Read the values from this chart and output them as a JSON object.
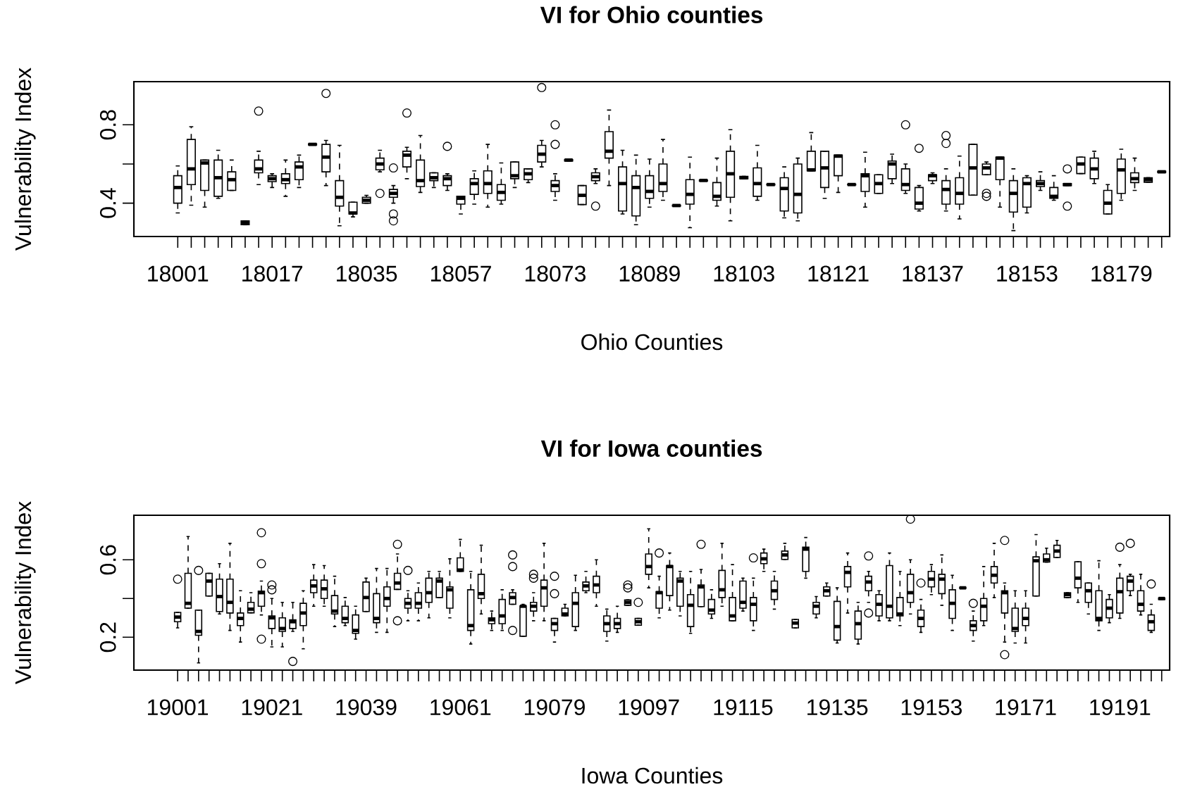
{
  "chart_data": [
    {
      "type": "box",
      "title": "VI for Ohio counties",
      "xlabel": "Ohio Counties",
      "ylabel": "Vulnerability Index",
      "categories": [
        "18001",
        null,
        null,
        null,
        null,
        null,
        null,
        "18017",
        null,
        null,
        null,
        null,
        null,
        null,
        "18035",
        null,
        null,
        null,
        null,
        null,
        null,
        "18057",
        null,
        null,
        null,
        null,
        null,
        null,
        "18073",
        null,
        null,
        null,
        null,
        null,
        null,
        "18089",
        null,
        null,
        null,
        null,
        null,
        null,
        "18103",
        null,
        null,
        null,
        null,
        null,
        null,
        "18121",
        null,
        null,
        null,
        null,
        null,
        null,
        "18137",
        null,
        null,
        null,
        null,
        null,
        null,
        "18153",
        null,
        null,
        null,
        null,
        null,
        null,
        "18179",
        null,
        null,
        null
      ],
      "ylim": [
        0.23,
        1.02
      ],
      "yticks": [
        0.4,
        {
          "value": 0.6,
          "label": null
        },
        0.8
      ],
      "boxes": [
        {
          "low": 0.35,
          "q1": 0.4,
          "median": 0.48,
          "q3": 0.54,
          "high": 0.59
        },
        {
          "low": 0.39,
          "q1": 0.495,
          "median": 0.575,
          "q3": 0.725,
          "high": 0.79
        },
        {
          "low": 0.38,
          "q1": 0.465,
          "median": 0.605,
          "q3": 0.62,
          "high": 0.62
        },
        {
          "low": 0.425,
          "q1": 0.435,
          "median": 0.53,
          "q3": 0.62,
          "high": 0.67
        },
        {
          "low": 0.465,
          "q1": 0.465,
          "median": 0.52,
          "q3": 0.56,
          "high": 0.62
        },
        {
          "low": 0.29,
          "q1": 0.29,
          "median": 0.3,
          "q3": 0.31,
          "high": 0.31
        },
        {
          "low": 0.495,
          "q1": 0.555,
          "median": 0.575,
          "q3": 0.62,
          "high": 0.665,
          "outliers": [
            0.87
          ]
        },
        {
          "low": 0.48,
          "q1": 0.51,
          "median": 0.525,
          "q3": 0.54,
          "high": 0.55
        },
        {
          "low": 0.435,
          "q1": 0.5,
          "median": 0.52,
          "q3": 0.55,
          "high": 0.62
        },
        {
          "low": 0.48,
          "q1": 0.52,
          "median": 0.585,
          "q3": 0.61,
          "high": 0.645
        },
        {
          "low": 0.697,
          "q1": 0.697,
          "median": 0.7,
          "q3": 0.703,
          "high": 0.703
        },
        {
          "low": 0.49,
          "q1": 0.56,
          "median": 0.635,
          "q3": 0.7,
          "high": 0.72,
          "outliers": [
            0.96
          ]
        },
        {
          "low": 0.285,
          "q1": 0.385,
          "median": 0.43,
          "q3": 0.515,
          "high": 0.695
        },
        {
          "low": 0.33,
          "q1": 0.345,
          "median": 0.35,
          "q3": 0.405,
          "high": 0.405
        },
        {
          "low": 0.4,
          "q1": 0.4,
          "median": 0.415,
          "q3": 0.43,
          "high": 0.44
        },
        {
          "low": 0.56,
          "q1": 0.57,
          "median": 0.6,
          "q3": 0.63,
          "high": 0.67,
          "outliers": [
            0.45
          ]
        },
        {
          "low": 0.4,
          "q1": 0.43,
          "median": 0.45,
          "q3": 0.47,
          "high": 0.49,
          "outliers": [
            0.31,
            0.345,
            0.58
          ]
        },
        {
          "low": 0.525,
          "q1": 0.585,
          "median": 0.645,
          "q3": 0.665,
          "high": 0.685,
          "outliers": [
            0.86
          ]
        },
        {
          "low": 0.455,
          "q1": 0.485,
          "median": 0.515,
          "q3": 0.62,
          "high": 0.745
        },
        {
          "low": 0.48,
          "q1": 0.515,
          "median": 0.53,
          "q3": 0.555,
          "high": 0.555
        },
        {
          "low": 0.465,
          "q1": 0.49,
          "median": 0.525,
          "q3": 0.54,
          "high": 0.55,
          "outliers": [
            0.69
          ]
        },
        {
          "low": 0.345,
          "q1": 0.395,
          "median": 0.425,
          "q3": 0.435,
          "high": 0.435
        },
        {
          "low": 0.395,
          "q1": 0.445,
          "median": 0.5,
          "q3": 0.525,
          "high": 0.565
        },
        {
          "low": 0.38,
          "q1": 0.45,
          "median": 0.5,
          "q3": 0.565,
          "high": 0.7
        },
        {
          "low": 0.395,
          "q1": 0.415,
          "median": 0.455,
          "q3": 0.495,
          "high": 0.605
        },
        {
          "low": 0.48,
          "q1": 0.525,
          "median": 0.54,
          "q3": 0.61,
          "high": 0.61
        },
        {
          "low": 0.505,
          "q1": 0.52,
          "median": 0.55,
          "q3": 0.575,
          "high": 0.575
        },
        {
          "low": 0.585,
          "q1": 0.61,
          "median": 0.65,
          "q3": 0.695,
          "high": 0.72,
          "outliers": [
            0.99
          ]
        },
        {
          "low": 0.415,
          "q1": 0.46,
          "median": 0.49,
          "q3": 0.515,
          "high": 0.55,
          "outliers": [
            0.7,
            0.8
          ]
        },
        {
          "low": 0.615,
          "q1": 0.615,
          "median": 0.62,
          "q3": 0.622,
          "high": 0.622
        },
        {
          "low": 0.393,
          "q1": 0.393,
          "median": 0.44,
          "q3": 0.49,
          "high": 0.49
        },
        {
          "low": 0.5,
          "q1": 0.515,
          "median": 0.535,
          "q3": 0.555,
          "high": 0.575,
          "outliers": [
            0.385
          ]
        },
        {
          "low": 0.49,
          "q1": 0.63,
          "median": 0.665,
          "q3": 0.765,
          "high": 0.875
        },
        {
          "low": 0.345,
          "q1": 0.36,
          "median": 0.5,
          "q3": 0.585,
          "high": 0.67
        },
        {
          "low": 0.29,
          "q1": 0.335,
          "median": 0.48,
          "q3": 0.54,
          "high": 0.645
        },
        {
          "low": 0.38,
          "q1": 0.425,
          "median": 0.46,
          "q3": 0.54,
          "high": 0.625
        },
        {
          "low": 0.415,
          "q1": 0.46,
          "median": 0.5,
          "q3": 0.6,
          "high": 0.725
        },
        {
          "low": 0.385,
          "q1": 0.385,
          "median": 0.388,
          "q3": 0.39,
          "high": 0.39
        },
        {
          "low": 0.275,
          "q1": 0.395,
          "median": 0.445,
          "q3": 0.52,
          "high": 0.635
        },
        {
          "low": 0.513,
          "q1": 0.513,
          "median": 0.516,
          "q3": 0.518,
          "high": 0.518
        },
        {
          "low": 0.385,
          "q1": 0.415,
          "median": 0.435,
          "q3": 0.505,
          "high": 0.63
        },
        {
          "low": 0.31,
          "q1": 0.43,
          "median": 0.55,
          "q3": 0.665,
          "high": 0.775
        },
        {
          "low": 0.525,
          "q1": 0.525,
          "median": 0.53,
          "q3": 0.537,
          "high": 0.537
        },
        {
          "low": 0.415,
          "q1": 0.435,
          "median": 0.5,
          "q3": 0.58,
          "high": 0.695
        },
        {
          "low": 0.493,
          "q1": 0.493,
          "median": 0.495,
          "q3": 0.497,
          "high": 0.497
        },
        {
          "low": 0.325,
          "q1": 0.36,
          "median": 0.475,
          "q3": 0.53,
          "high": 0.585
        },
        {
          "low": 0.31,
          "q1": 0.35,
          "median": 0.445,
          "q3": 0.6,
          "high": 0.63
        },
        {
          "low": 0.565,
          "q1": 0.565,
          "median": 0.57,
          "q3": 0.665,
          "high": 0.76
        },
        {
          "low": 0.425,
          "q1": 0.48,
          "median": 0.58,
          "q3": 0.665,
          "high": 0.665
        },
        {
          "low": 0.455,
          "q1": 0.54,
          "median": 0.64,
          "q3": 0.645,
          "high": 0.645
        },
        {
          "low": 0.493,
          "q1": 0.493,
          "median": 0.495,
          "q3": 0.497,
          "high": 0.497
        },
        {
          "low": 0.38,
          "q1": 0.46,
          "median": 0.54,
          "q3": 0.55,
          "high": 0.66
        },
        {
          "low": 0.45,
          "q1": 0.45,
          "median": 0.5,
          "q3": 0.545,
          "high": 0.545
        },
        {
          "low": 0.5,
          "q1": 0.525,
          "median": 0.6,
          "q3": 0.615,
          "high": 0.65
        },
        {
          "low": 0.45,
          "q1": 0.465,
          "median": 0.495,
          "q3": 0.575,
          "high": 0.6,
          "outliers": [
            0.8
          ]
        },
        {
          "low": 0.36,
          "q1": 0.37,
          "median": 0.4,
          "q3": 0.48,
          "high": 0.49,
          "outliers": [
            0.68
          ]
        },
        {
          "low": 0.5,
          "q1": 0.515,
          "median": 0.54,
          "q3": 0.545,
          "high": 0.555
        },
        {
          "low": 0.36,
          "q1": 0.395,
          "median": 0.47,
          "q3": 0.515,
          "high": 0.575,
          "outliers": [
            0.705,
            0.745
          ]
        },
        {
          "low": 0.32,
          "q1": 0.395,
          "median": 0.45,
          "q3": 0.53,
          "high": 0.64
        },
        {
          "low": 0.441,
          "q1": 0.441,
          "median": 0.58,
          "q3": 0.7,
          "high": 0.7
        },
        {
          "low": 0.545,
          "q1": 0.545,
          "median": 0.58,
          "q3": 0.6,
          "high": 0.61,
          "outliers": [
            0.435,
            0.45
          ]
        },
        {
          "low": 0.38,
          "q1": 0.52,
          "median": 0.63,
          "q3": 0.635,
          "high": 0.635
        },
        {
          "low": 0.26,
          "q1": 0.355,
          "median": 0.45,
          "q3": 0.515,
          "high": 0.575
        },
        {
          "low": 0.35,
          "q1": 0.38,
          "median": 0.5,
          "q3": 0.53,
          "high": 0.54
        },
        {
          "low": 0.465,
          "q1": 0.485,
          "median": 0.5,
          "q3": 0.515,
          "high": 0.56
        },
        {
          "low": 0.415,
          "q1": 0.425,
          "median": 0.435,
          "q3": 0.48,
          "high": 0.54
        },
        {
          "low": 0.49,
          "q1": 0.49,
          "median": 0.495,
          "q3": 0.5,
          "high": 0.5,
          "outliers": [
            0.385,
            0.575
          ]
        },
        {
          "low": 0.551,
          "q1": 0.551,
          "median": 0.6,
          "q3": 0.635,
          "high": 0.635
        },
        {
          "low": 0.5,
          "q1": 0.525,
          "median": 0.575,
          "q3": 0.63,
          "high": 0.665
        },
        {
          "low": 0.345,
          "q1": 0.345,
          "median": 0.4,
          "q3": 0.465,
          "high": 0.495
        },
        {
          "low": 0.415,
          "q1": 0.45,
          "median": 0.57,
          "q3": 0.625,
          "high": 0.675
        },
        {
          "low": 0.465,
          "q1": 0.505,
          "median": 0.525,
          "q3": 0.555,
          "high": 0.63
        },
        {
          "low": 0.507,
          "q1": 0.507,
          "median": 0.52,
          "q3": 0.53,
          "high": 0.53
        },
        {
          "low": 0.557,
          "q1": 0.557,
          "median": 0.56,
          "q3": 0.563,
          "high": 0.563
        }
      ]
    },
    {
      "type": "box",
      "title": "VI for Iowa counties",
      "xlabel": "Iowa Counties",
      "ylabel": "Vulnerability Index",
      "categories": [
        "19001",
        null,
        null,
        null,
        null,
        null,
        null,
        null,
        null,
        "19021",
        null,
        null,
        null,
        null,
        null,
        null,
        null,
        null,
        "19039",
        null,
        null,
        null,
        null,
        null,
        null,
        null,
        null,
        "19061",
        null,
        null,
        null,
        null,
        null,
        null,
        null,
        null,
        "19079",
        null,
        null,
        null,
        null,
        null,
        null,
        null,
        null,
        "19097",
        null,
        null,
        null,
        null,
        null,
        null,
        null,
        null,
        "19115",
        null,
        null,
        null,
        null,
        null,
        null,
        null,
        null,
        "19135",
        null,
        null,
        null,
        null,
        null,
        null,
        null,
        null,
        "19153",
        null,
        null,
        null,
        null,
        null,
        null,
        null,
        null,
        "19171",
        null,
        null,
        null,
        null,
        null,
        null,
        null,
        null,
        "19191",
        null,
        null,
        null,
        null
      ],
      "ylim": [
        0.03,
        0.83
      ],
      "yticks": [
        0.2,
        {
          "value": 0.4,
          "label": null
        },
        0.6
      ],
      "boxes": [
        {
          "low": 0.248,
          "q1": 0.28,
          "median": 0.304,
          "q3": 0.328,
          "high": 0.328,
          "outliers": [
            0.5
          ]
        },
        {
          "low": 0.35,
          "q1": 0.35,
          "median": 0.375,
          "q3": 0.53,
          "high": 0.72
        },
        {
          "low": 0.067,
          "q1": 0.21,
          "median": 0.23,
          "q3": 0.34,
          "high": 0.34,
          "outliers": [
            0.545
          ]
        },
        {
          "low": 0.413,
          "q1": 0.413,
          "median": 0.49,
          "q3": 0.53,
          "high": 0.53
        },
        {
          "low": 0.32,
          "q1": 0.333,
          "median": 0.41,
          "q3": 0.5,
          "high": 0.58
        },
        {
          "low": 0.235,
          "q1": 0.325,
          "median": 0.38,
          "q3": 0.5,
          "high": 0.685
        },
        {
          "low": 0.175,
          "q1": 0.26,
          "median": 0.297,
          "q3": 0.325,
          "high": 0.44
        },
        {
          "low": 0.326,
          "q1": 0.326,
          "median": 0.345,
          "q3": 0.38,
          "high": 0.43
        },
        {
          "low": 0.315,
          "q1": 0.36,
          "median": 0.43,
          "q3": 0.438,
          "high": 0.49,
          "outliers": [
            0.19,
            0.58,
            0.74
          ]
        },
        {
          "low": 0.15,
          "q1": 0.245,
          "median": 0.3,
          "q3": 0.31,
          "high": 0.4,
          "outliers": [
            0.445,
            0.47
          ]
        },
        {
          "low": 0.15,
          "q1": 0.23,
          "median": 0.245,
          "q3": 0.3,
          "high": 0.38
        },
        {
          "low": 0.23,
          "q1": 0.245,
          "median": 0.28,
          "q3": 0.29,
          "high": 0.38,
          "outliers": [
            0.075
          ]
        },
        {
          "low": 0.14,
          "q1": 0.26,
          "median": 0.325,
          "q3": 0.375,
          "high": 0.44
        },
        {
          "low": 0.36,
          "q1": 0.43,
          "median": 0.465,
          "q3": 0.495,
          "high": 0.575
        },
        {
          "low": 0.36,
          "q1": 0.4,
          "median": 0.45,
          "q3": 0.495,
          "high": 0.57
        },
        {
          "low": 0.255,
          "q1": 0.32,
          "median": 0.335,
          "q3": 0.415,
          "high": 0.515
        },
        {
          "low": 0.26,
          "q1": 0.275,
          "median": 0.297,
          "q3": 0.36,
          "high": 0.405
        },
        {
          "low": 0.19,
          "q1": 0.22,
          "median": 0.235,
          "q3": 0.315,
          "high": 0.36
        },
        {
          "low": 0.333,
          "q1": 0.333,
          "median": 0.405,
          "q3": 0.485,
          "high": 0.505
        },
        {
          "low": 0.225,
          "q1": 0.275,
          "median": 0.297,
          "q3": 0.425,
          "high": 0.555
        },
        {
          "low": 0.225,
          "q1": 0.36,
          "median": 0.4,
          "q3": 0.46,
          "high": 0.555
        },
        {
          "low": 0.447,
          "q1": 0.447,
          "median": 0.48,
          "q3": 0.53,
          "high": 0.63,
          "outliers": [
            0.285,
            0.68
          ]
        },
        {
          "low": 0.285,
          "q1": 0.35,
          "median": 0.375,
          "q3": 0.4,
          "high": 0.44,
          "outliers": [
            0.545
          ]
        },
        {
          "low": 0.285,
          "q1": 0.35,
          "median": 0.375,
          "q3": 0.43,
          "high": 0.48
        },
        {
          "low": 0.3,
          "q1": 0.38,
          "median": 0.43,
          "q3": 0.505,
          "high": 0.54
        },
        {
          "low": 0.405,
          "q1": 0.405,
          "median": 0.49,
          "q3": 0.505,
          "high": 0.54
        },
        {
          "low": 0.3,
          "q1": 0.35,
          "median": 0.445,
          "q3": 0.46,
          "high": 0.605
        },
        {
          "low": 0.54,
          "q1": 0.54,
          "median": 0.547,
          "q3": 0.61,
          "high": 0.705
        },
        {
          "low": 0.165,
          "q1": 0.235,
          "median": 0.26,
          "q3": 0.445,
          "high": 0.54
        },
        {
          "low": 0.32,
          "q1": 0.4,
          "median": 0.425,
          "q3": 0.525,
          "high": 0.675
        },
        {
          "low": 0.235,
          "q1": 0.27,
          "median": 0.29,
          "q3": 0.3,
          "high": 0.335
        },
        {
          "low": 0.235,
          "q1": 0.27,
          "median": 0.31,
          "q3": 0.395,
          "high": 0.445
        },
        {
          "low": 0.37,
          "q1": 0.37,
          "median": 0.405,
          "q3": 0.43,
          "high": 0.445,
          "outliers": [
            0.235,
            0.565,
            0.625
          ]
        },
        {
          "low": 0.205,
          "q1": 0.205,
          "median": 0.36,
          "q3": 0.362,
          "high": 0.37
        },
        {
          "low": 0.285,
          "q1": 0.335,
          "median": 0.36,
          "q3": 0.38,
          "high": 0.43,
          "outliers": [
            0.505,
            0.525
          ]
        },
        {
          "low": 0.285,
          "q1": 0.36,
          "median": 0.455,
          "q3": 0.495,
          "high": 0.685
        },
        {
          "low": 0.175,
          "q1": 0.235,
          "median": 0.27,
          "q3": 0.297,
          "high": 0.297,
          "outliers": [
            0.425,
            0.515
          ]
        },
        {
          "low": 0.31,
          "q1": 0.31,
          "median": 0.32,
          "q3": 0.35,
          "high": 0.37
        },
        {
          "low": 0.235,
          "q1": 0.255,
          "median": 0.375,
          "q3": 0.43,
          "high": 0.52
        },
        {
          "low": 0.43,
          "q1": 0.44,
          "median": 0.465,
          "q3": 0.485,
          "high": 0.54
        },
        {
          "low": 0.36,
          "q1": 0.43,
          "median": 0.47,
          "q3": 0.515,
          "high": 0.6
        },
        {
          "low": 0.18,
          "q1": 0.23,
          "median": 0.27,
          "q3": 0.31,
          "high": 0.345
        },
        {
          "low": 0.225,
          "q1": 0.245,
          "median": 0.27,
          "q3": 0.297,
          "high": 0.36
        },
        {
          "low": 0.365,
          "q1": 0.365,
          "median": 0.38,
          "q3": 0.393,
          "high": 0.393,
          "outliers": [
            0.455,
            0.47
          ]
        },
        {
          "low": 0.262,
          "q1": 0.262,
          "median": 0.28,
          "q3": 0.297,
          "high": 0.297,
          "outliers": [
            0.38
          ]
        },
        {
          "low": 0.455,
          "q1": 0.525,
          "median": 0.565,
          "q3": 0.63,
          "high": 0.76
        },
        {
          "low": 0.3,
          "q1": 0.35,
          "median": 0.43,
          "q3": 0.435,
          "high": 0.515,
          "outliers": [
            0.635
          ]
        },
        {
          "low": 0.34,
          "q1": 0.415,
          "median": 0.565,
          "q3": 0.57,
          "high": 0.635
        },
        {
          "low": 0.31,
          "q1": 0.36,
          "median": 0.49,
          "q3": 0.505,
          "high": 0.54
        },
        {
          "low": 0.22,
          "q1": 0.255,
          "median": 0.365,
          "q3": 0.42,
          "high": 0.54
        },
        {
          "low": 0.358,
          "q1": 0.358,
          "median": 0.46,
          "q3": 0.47,
          "high": 0.55,
          "outliers": [
            0.68
          ]
        },
        {
          "low": 0.297,
          "q1": 0.32,
          "median": 0.34,
          "q3": 0.395,
          "high": 0.445
        },
        {
          "low": 0.36,
          "q1": 0.405,
          "median": 0.445,
          "q3": 0.545,
          "high": 0.685
        },
        {
          "low": 0.285,
          "q1": 0.285,
          "median": 0.31,
          "q3": 0.405,
          "high": 0.575
        },
        {
          "low": 0.335,
          "q1": 0.35,
          "median": 0.38,
          "q3": 0.49,
          "high": 0.505
        },
        {
          "low": 0.235,
          "q1": 0.285,
          "median": 0.37,
          "q3": 0.405,
          "high": 0.505,
          "outliers": [
            0.61
          ]
        },
        {
          "low": 0.54,
          "q1": 0.58,
          "median": 0.605,
          "q3": 0.635,
          "high": 0.655
        },
        {
          "low": 0.345,
          "q1": 0.395,
          "median": 0.44,
          "q3": 0.49,
          "high": 0.54
        },
        {
          "low": 0.602,
          "q1": 0.602,
          "median": 0.625,
          "q3": 0.645,
          "high": 0.685
        },
        {
          "low": 0.248,
          "q1": 0.248,
          "median": 0.273,
          "q3": 0.292,
          "high": 0.292
        },
        {
          "low": 0.505,
          "q1": 0.54,
          "median": 0.655,
          "q3": 0.665,
          "high": 0.715
        },
        {
          "low": 0.3,
          "q1": 0.32,
          "median": 0.36,
          "q3": 0.38,
          "high": 0.41
        },
        {
          "low": 0.413,
          "q1": 0.413,
          "median": 0.44,
          "q3": 0.46,
          "high": 0.48
        },
        {
          "low": 0.17,
          "q1": 0.185,
          "median": 0.255,
          "q3": 0.385,
          "high": 0.455
        },
        {
          "low": 0.325,
          "q1": 0.46,
          "median": 0.535,
          "q3": 0.565,
          "high": 0.635
        },
        {
          "low": 0.165,
          "q1": 0.19,
          "median": 0.27,
          "q3": 0.335,
          "high": 0.38
        },
        {
          "low": 0.38,
          "q1": 0.44,
          "median": 0.485,
          "q3": 0.515,
          "high": 0.54,
          "outliers": [
            0.325,
            0.62
          ]
        },
        {
          "low": 0.285,
          "q1": 0.31,
          "median": 0.37,
          "q3": 0.42,
          "high": 0.44
        },
        {
          "low": 0.285,
          "q1": 0.3,
          "median": 0.36,
          "q3": 0.57,
          "high": 0.635
        },
        {
          "low": 0.26,
          "q1": 0.31,
          "median": 0.32,
          "q3": 0.405,
          "high": 0.54
        },
        {
          "low": 0.32,
          "q1": 0.38,
          "median": 0.43,
          "q3": 0.525,
          "high": 0.6,
          "outliers": [
            0.81
          ]
        },
        {
          "low": 0.225,
          "q1": 0.255,
          "median": 0.297,
          "q3": 0.34,
          "high": 0.395,
          "outliers": [
            0.48
          ]
        },
        {
          "low": 0.42,
          "q1": 0.46,
          "median": 0.5,
          "q3": 0.54,
          "high": 0.575
        },
        {
          "low": 0.365,
          "q1": 0.425,
          "median": 0.5,
          "q3": 0.525,
          "high": 0.625
        },
        {
          "low": 0.235,
          "q1": 0.297,
          "median": 0.375,
          "q3": 0.445,
          "high": 0.52
        },
        {
          "low": 0.452,
          "q1": 0.452,
          "median": 0.455,
          "q3": 0.458,
          "high": 0.458
        },
        {
          "low": 0.18,
          "q1": 0.235,
          "median": 0.26,
          "q3": 0.285,
          "high": 0.335,
          "outliers": [
            0.375
          ]
        },
        {
          "low": 0.26,
          "q1": 0.285,
          "median": 0.36,
          "q3": 0.4,
          "high": 0.565
        },
        {
          "low": 0.405,
          "q1": 0.48,
          "median": 0.52,
          "q3": 0.565,
          "high": 0.685
        },
        {
          "low": 0.175,
          "q1": 0.325,
          "median": 0.43,
          "q3": 0.44,
          "high": 0.48,
          "outliers": [
            0.11,
            0.7
          ]
        },
        {
          "low": 0.17,
          "q1": 0.23,
          "median": 0.245,
          "q3": 0.35,
          "high": 0.44
        },
        {
          "low": 0.17,
          "q1": 0.26,
          "median": 0.297,
          "q3": 0.35,
          "high": 0.44
        },
        {
          "low": 0.413,
          "q1": 0.413,
          "median": 0.595,
          "q3": 0.615,
          "high": 0.73
        },
        {
          "low": 0.588,
          "q1": 0.588,
          "median": 0.6,
          "q3": 0.63,
          "high": 0.66
        },
        {
          "low": 0.612,
          "q1": 0.612,
          "median": 0.645,
          "q3": 0.675,
          "high": 0.7
        },
        {
          "low": 0.405,
          "q1": 0.405,
          "median": 0.42,
          "q3": 0.43,
          "high": 0.43
        },
        {
          "low": 0.38,
          "q1": 0.455,
          "median": 0.505,
          "q3": 0.59,
          "high": 0.59
        },
        {
          "low": 0.32,
          "q1": 0.38,
          "median": 0.44,
          "q3": 0.48,
          "high": 0.48
        },
        {
          "low": 0.235,
          "q1": 0.285,
          "median": 0.297,
          "q3": 0.44,
          "high": 0.595
        },
        {
          "low": 0.275,
          "q1": 0.3,
          "median": 0.35,
          "q3": 0.395,
          "high": 0.42
        },
        {
          "low": 0.297,
          "q1": 0.325,
          "median": 0.435,
          "q3": 0.505,
          "high": 0.575,
          "outliers": [
            0.665
          ]
        },
        {
          "low": 0.415,
          "q1": 0.44,
          "median": 0.49,
          "q3": 0.515,
          "high": 0.525,
          "outliers": [
            0.685
          ]
        },
        {
          "low": 0.315,
          "q1": 0.335,
          "median": 0.37,
          "q3": 0.44,
          "high": 0.525
        },
        {
          "low": 0.225,
          "q1": 0.235,
          "median": 0.28,
          "q3": 0.315,
          "high": 0.37,
          "outliers": [
            0.475
          ]
        },
        {
          "low": 0.395,
          "q1": 0.395,
          "median": 0.4,
          "q3": 0.403,
          "high": 0.403
        }
      ]
    }
  ]
}
